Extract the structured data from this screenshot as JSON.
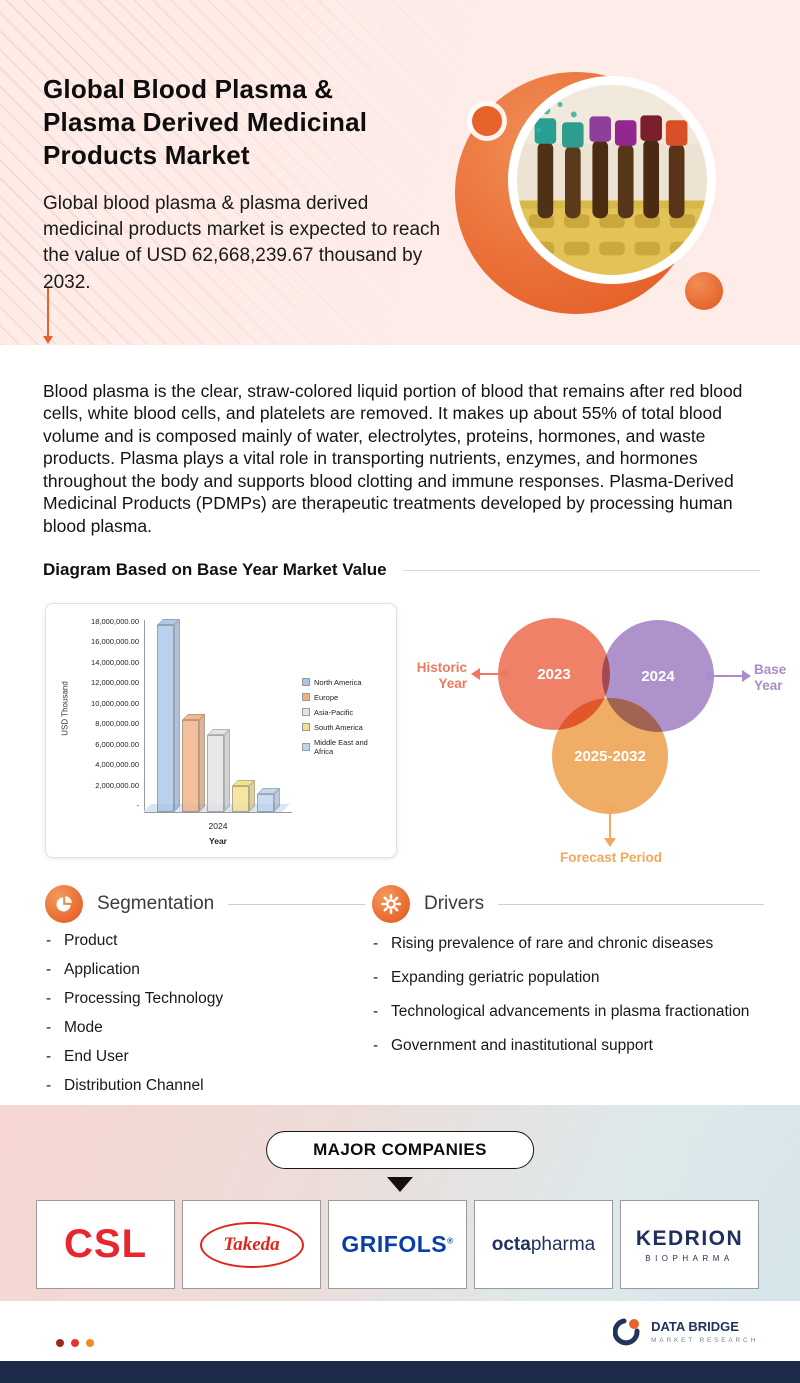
{
  "colors": {
    "accent_orange": "#e8622c",
    "hero_background": "#fdece8",
    "navy": "#22335c",
    "venn_historic": "#ed7a60",
    "venn_base": "#a98cc9",
    "venn_forecast": "#f0a95e"
  },
  "header": {
    "title": "Global Blood Plasma & Plasma Derived Medicinal Products Market",
    "subtitle": "Global blood plasma & plasma derived medicinal products market is expected to reach the value of USD 62,668,239.67 thousand by 2032."
  },
  "intro_paragraph": "Blood plasma is the clear, straw-colored liquid portion of blood that remains after red blood cells, white blood cells, and platelets are removed. It makes up about 55% of total blood volume and is composed mainly of water, electrolytes, proteins, hormones, and waste products. Plasma plays a vital role in transporting nutrients, enzymes, and hormones throughout the body and supports blood clotting and immune responses. Plasma-Derived Medicinal Products (PDMPs) are therapeutic treatments developed by processing human blood plasma.",
  "diagram_section": {
    "title": "Diagram Based on Base Year Market Value"
  },
  "chart_data": {
    "type": "bar",
    "categories": [
      "2024"
    ],
    "xlabel": "Year",
    "ylabel": "USD Thousand",
    "ylim": [
      0,
      18000000
    ],
    "ytick_labels": [
      "18,000,000.00",
      "16,000,000.00",
      "14,000,000.00",
      "12,000,000.00",
      "10,000,000.00",
      "8,000,000.00",
      "6,000,000.00",
      "4,000,000.00",
      "2,000,000.00",
      "-"
    ],
    "series": [
      {
        "name": "North America",
        "values": [
          17500000
        ],
        "color": "#a8c6e8"
      },
      {
        "name": "Europe",
        "values": [
          8600000
        ],
        "color": "#f2b183"
      },
      {
        "name": "Asia-Pacific",
        "values": [
          7200000
        ],
        "color": "#e2e2e2"
      },
      {
        "name": "South America",
        "values": [
          2400000
        ],
        "color": "#f5e08a"
      },
      {
        "name": "Middle East and Africa",
        "values": [
          1700000
        ],
        "color": "#bcd4ee"
      }
    ],
    "legend_position": "right",
    "grid": false
  },
  "venn": {
    "historic": {
      "year": "2023",
      "label": "Historic Year",
      "color": "#ed7a60"
    },
    "base": {
      "year": "2024",
      "label": "Base Year",
      "color": "#a98cc9"
    },
    "forecast": {
      "year": "2025-2032",
      "label": "Forecast Period",
      "color": "#f0a95e"
    }
  },
  "segmentation": {
    "title": "Segmentation",
    "items": [
      "Product",
      "Application",
      "Processing Technology",
      "Mode",
      "End User",
      "Distribution Channel"
    ]
  },
  "drivers": {
    "title": "Drivers",
    "items": [
      "Rising prevalence of rare and chronic diseases",
      "Expanding geriatric population",
      "Technological advancements in plasma fractionation",
      "Government and inastitutional support"
    ]
  },
  "companies": {
    "title": "MAJOR COMPANIES",
    "items": [
      {
        "name": "CSL"
      },
      {
        "name": "Takeda"
      },
      {
        "name": "GRIFOLS",
        "mark": "®"
      },
      {
        "name_bold": "octa",
        "name_regular": "pharma"
      },
      {
        "name": "KEDRION",
        "sub": "BIOPHARMA"
      }
    ]
  },
  "footer": {
    "brand_name": "DATA BRIDGE",
    "brand_tagline": "MARKET RESEARCH"
  }
}
